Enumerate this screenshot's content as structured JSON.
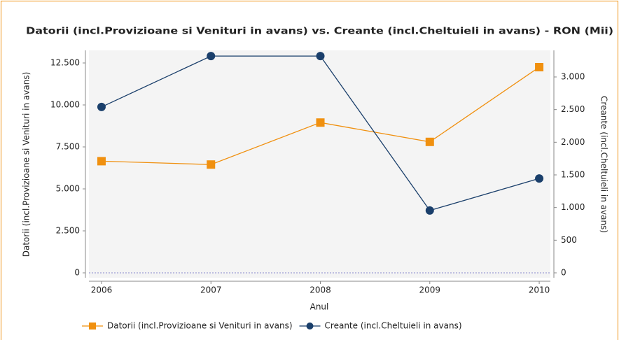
{
  "chart_data": {
    "type": "line",
    "title": "Datorii (incl.Provizioane si Venituri in avans) vs. Creante (incl.Cheltuieli in avans) - RON (Mii)",
    "x_label": "Anul",
    "y_label": "Datorii (incl.Provizioane si Venituri in avans)",
    "y2_label": "Creante (incl.Cheltuieli in avans)",
    "x": [
      2006,
      2007,
      2008,
      2009,
      2010
    ],
    "xlim": [
      2005.885,
      2010.102
    ],
    "xticks": [
      2006,
      2007,
      2008,
      2009,
      2010
    ],
    "ylim": [
      -292,
      13250
    ],
    "yticks": [
      0,
      {
        "value": 2500,
        "label": "2.500"
      },
      {
        "value": 5000,
        "label": "5.000"
      },
      {
        "value": 7500,
        "label": "7.500"
      },
      {
        "value": 10000,
        "label": "10.000"
      },
      {
        "value": 12500,
        "label": "12.500"
      }
    ],
    "y2lim": [
      -75,
      3407
    ],
    "y2ticks": [
      0,
      500,
      {
        "value": 1000,
        "label": "1.000"
      },
      {
        "value": 1500,
        "label": "1.500"
      },
      {
        "value": 2000,
        "label": "2.000"
      },
      {
        "value": 2500,
        "label": "2.500"
      },
      {
        "value": 3000,
        "label": "3.000"
      }
    ],
    "legend": "bottom",
    "series": [
      {
        "name": "Datorii (incl.Provizioane si Venituri in avans)",
        "color": "#f0900f",
        "marker": "square",
        "axis": "y",
        "values": [
          6650,
          6450,
          8950,
          7800,
          12250
        ]
      },
      {
        "name": "Creante (incl.Cheltuieli in avans)",
        "color": "#1a3f6b",
        "marker": "circle",
        "axis": "y2",
        "values": [
          2540,
          3320,
          3320,
          955,
          1445
        ]
      }
    ]
  }
}
